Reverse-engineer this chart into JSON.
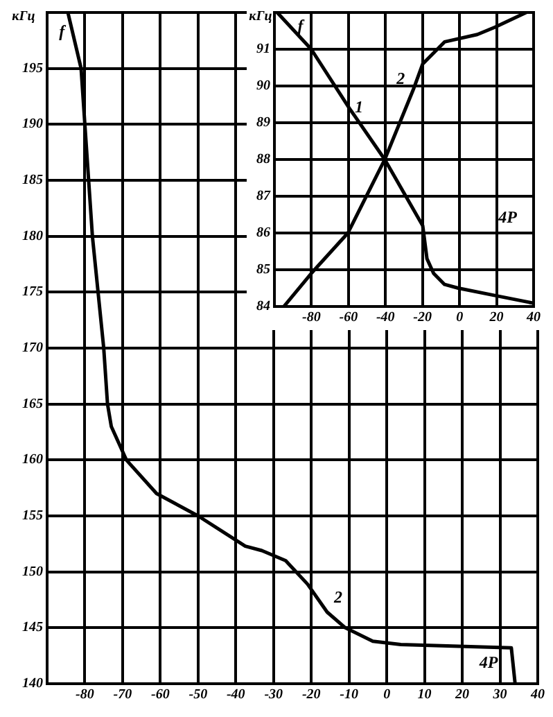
{
  "chart_data": [
    {
      "type": "line",
      "ylabel": "кГц",
      "xlim": [
        -90,
        40
      ],
      "xticks": [
        -80,
        -70,
        -60,
        -50,
        -40,
        -30,
        -20,
        -10,
        0,
        10,
        20,
        30,
        40
      ],
      "ylim": [
        140,
        200
      ],
      "yticks": [
        140,
        145,
        150,
        155,
        160,
        165,
        170,
        175,
        180,
        185,
        190,
        195
      ],
      "grid": true,
      "legend": false,
      "marker": "none",
      "line_style": "solid",
      "series": [
        {
          "name": "2",
          "color": "#000000",
          "x": [
            -84.5,
            -81,
            -78,
            -75,
            -74,
            -73,
            -69,
            -61,
            -50,
            -37.5,
            -33.1,
            -26.8,
            -21,
            -15.8,
            -11,
            -3.7,
            3.7,
            33,
            34
          ],
          "values": [
            200,
            195,
            180,
            170,
            165,
            163,
            160,
            157,
            155,
            152.3,
            151.9,
            151,
            148.9,
            146.4,
            145,
            143.8,
            143.5,
            143.2,
            140
          ]
        }
      ],
      "annotations": [
        "f",
        "4P"
      ]
    },
    {
      "type": "line",
      "ylabel": "кГц",
      "xlim": [
        -100,
        40
      ],
      "xticks": [
        -80,
        -60,
        -40,
        -20,
        0,
        20,
        40
      ],
      "ylim": [
        84,
        92
      ],
      "yticks": [
        84,
        85,
        86,
        87,
        88,
        89,
        90,
        91
      ],
      "grid": true,
      "legend": false,
      "marker": "none",
      "line_style": "solid",
      "series": [
        {
          "name": "1",
          "color": "#000000",
          "x": [
            -98.5,
            -80.1,
            -59.6,
            -40.4,
            -19.9,
            -17.6,
            -14,
            -8.1,
            -0.7,
            19.1,
            39
          ],
          "values": [
            92,
            91,
            89.4,
            88,
            86.2,
            85.3,
            84.9,
            84.6,
            84.5,
            84.3,
            84.1
          ]
        },
        {
          "name": "2",
          "color": "#000000",
          "x": [
            -94.9,
            -80.1,
            -60.3,
            -40.4,
            -25,
            -19.9,
            -8.1,
            9.6,
            19.1,
            36
          ],
          "values": [
            84,
            84.9,
            86,
            88,
            89.9,
            90.6,
            91.2,
            91.4,
            91.6,
            92
          ]
        }
      ],
      "annotations": [
        "f",
        "4P"
      ]
    }
  ]
}
